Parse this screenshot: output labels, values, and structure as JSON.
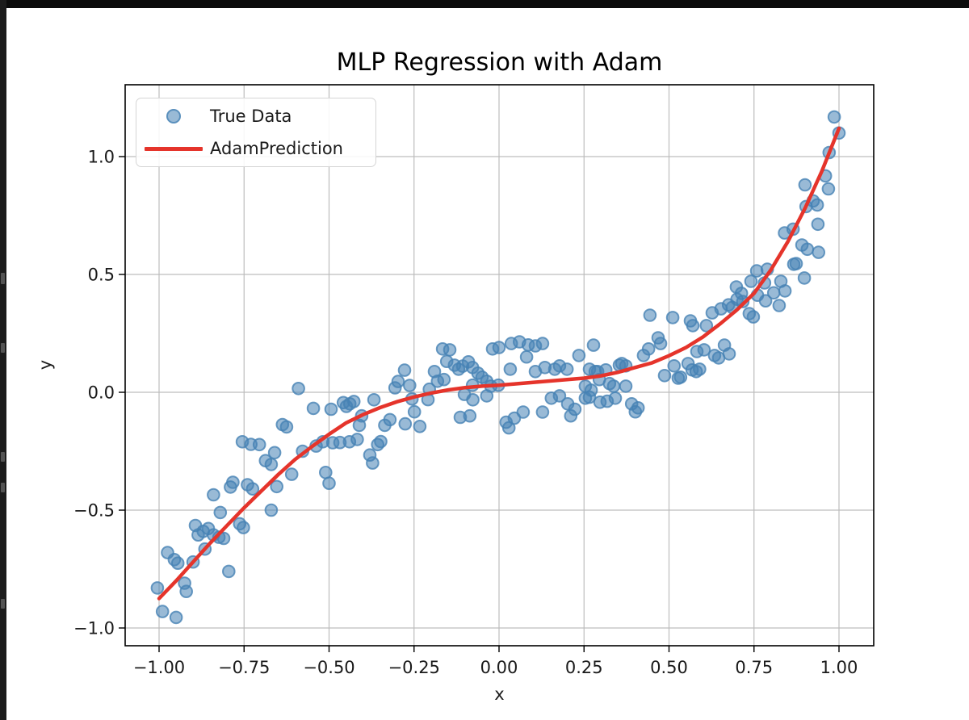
{
  "page": {
    "background": "#ffffff",
    "top_bar_color": "#0b0b0b",
    "left_strip_color": "#1c1c1c"
  },
  "chart_data": {
    "type": "scatter",
    "title": "MLP Regression with Adam",
    "xlabel": "x",
    "ylabel": "y",
    "xlim": [
      -1.1,
      1.1
    ],
    "ylim": [
      -1.075,
      1.305
    ],
    "grid": true,
    "grid_color": "#bdbdbd",
    "x_ticks": [
      -1.0,
      -0.75,
      -0.5,
      -0.25,
      0.0,
      0.25,
      0.5,
      0.75,
      1.0
    ],
    "x_tick_labels": [
      "−1.00",
      "−0.75",
      "−0.50",
      "−0.25",
      "0.00",
      "0.25",
      "0.50",
      "0.75",
      "1.00"
    ],
    "y_ticks": [
      1.0,
      0.5,
      0.0,
      -0.5,
      -1.0
    ],
    "y_tick_labels": [
      "1.0",
      "0.5",
      "0.0",
      "−0.5",
      "−1.0"
    ],
    "legend": {
      "position": "upper left",
      "entries": [
        {
          "label": "True Data",
          "type": "marker",
          "color": "#4682b4"
        },
        {
          "label": "AdamPrediction",
          "type": "line",
          "color": "#e5342b"
        }
      ]
    },
    "series": [
      {
        "name": "True Data",
        "type": "scatter",
        "marker_color": "#4682b4",
        "marker_alpha": 0.55,
        "points": [
          [
            -1.005,
            -0.83
          ],
          [
            -0.99,
            -0.93
          ],
          [
            -0.95,
            -0.955
          ],
          [
            -0.975,
            -0.68
          ],
          [
            -0.955,
            -0.71
          ],
          [
            -0.945,
            -0.725
          ],
          [
            -0.925,
            -0.81
          ],
          [
            -0.92,
            -0.845
          ],
          [
            -0.9,
            -0.72
          ],
          [
            -0.893,
            -0.565
          ],
          [
            -0.885,
            -0.605
          ],
          [
            -0.87,
            -0.59
          ],
          [
            -0.855,
            -0.578
          ],
          [
            -0.865,
            -0.665
          ],
          [
            -0.84,
            -0.605
          ],
          [
            -0.824,
            -0.615
          ],
          [
            -0.81,
            -0.62
          ],
          [
            -0.84,
            -0.435
          ],
          [
            -0.82,
            -0.51
          ],
          [
            -0.795,
            -0.76
          ],
          [
            -0.79,
            -0.402
          ],
          [
            -0.783,
            -0.382
          ],
          [
            -0.763,
            -0.558
          ],
          [
            -0.752,
            -0.574
          ],
          [
            -0.74,
            -0.392
          ],
          [
            -0.725,
            -0.41
          ],
          [
            -0.755,
            -0.21
          ],
          [
            -0.73,
            -0.221
          ],
          [
            -0.705,
            -0.222
          ],
          [
            -0.687,
            -0.29
          ],
          [
            -0.67,
            -0.306
          ],
          [
            -0.66,
            -0.256
          ],
          [
            -0.654,
            -0.4
          ],
          [
            -0.67,
            -0.5
          ],
          [
            -0.637,
            -0.137
          ],
          [
            -0.625,
            -0.147
          ],
          [
            -0.61,
            -0.348
          ],
          [
            -0.59,
            0.016
          ],
          [
            -0.578,
            -0.25
          ],
          [
            -0.546,
            -0.068
          ],
          [
            -0.538,
            -0.228
          ],
          [
            -0.518,
            -0.21
          ],
          [
            -0.51,
            -0.34
          ],
          [
            -0.5,
            -0.386
          ],
          [
            -0.494,
            -0.072
          ],
          [
            -0.489,
            -0.214
          ],
          [
            -0.468,
            -0.213
          ],
          [
            -0.458,
            -0.044
          ],
          [
            -0.449,
            -0.06
          ],
          [
            -0.439,
            -0.049
          ],
          [
            -0.427,
            -0.039
          ],
          [
            -0.44,
            -0.21
          ],
          [
            -0.417,
            -0.2
          ],
          [
            -0.411,
            -0.14
          ],
          [
            -0.404,
            -0.1
          ],
          [
            -0.38,
            -0.266
          ],
          [
            -0.372,
            -0.3
          ],
          [
            -0.368,
            -0.032
          ],
          [
            -0.357,
            -0.222
          ],
          [
            -0.348,
            -0.209
          ],
          [
            -0.336,
            -0.14
          ],
          [
            -0.321,
            -0.116
          ],
          [
            -0.306,
            0.019
          ],
          [
            -0.297,
            0.046
          ],
          [
            -0.278,
            0.094
          ],
          [
            -0.276,
            -0.134
          ],
          [
            -0.263,
            0.029
          ],
          [
            -0.256,
            -0.028
          ],
          [
            -0.249,
            -0.083
          ],
          [
            -0.233,
            -0.145
          ],
          [
            -0.209,
            -0.031
          ],
          [
            -0.205,
            0.013
          ],
          [
            -0.19,
            0.088
          ],
          [
            -0.181,
            0.047
          ],
          [
            -0.166,
            0.184
          ],
          [
            -0.162,
            0.054
          ],
          [
            -0.154,
            0.131
          ],
          [
            -0.145,
            0.18
          ],
          [
            -0.131,
            0.115
          ],
          [
            -0.119,
            0.098
          ],
          [
            -0.114,
            -0.106
          ],
          [
            -0.107,
            0.111
          ],
          [
            -0.102,
            -0.009
          ],
          [
            -0.09,
            0.129
          ],
          [
            -0.086,
            -0.1
          ],
          [
            -0.078,
            0.105
          ],
          [
            -0.078,
            0.03
          ],
          [
            -0.077,
            -0.032
          ],
          [
            -0.062,
            0.081
          ],
          [
            -0.05,
            0.064
          ],
          [
            -0.036,
            0.047
          ],
          [
            -0.036,
            -0.015
          ],
          [
            -0.024,
            0.026
          ],
          [
            -0.019,
            0.184
          ],
          [
            -0.002,
            0.03
          ],
          [
            0.0,
            0.19
          ],
          [
            0.021,
            -0.127
          ],
          [
            0.029,
            -0.151
          ],
          [
            0.033,
            0.098
          ],
          [
            0.036,
            0.207
          ],
          [
            0.045,
            -0.11
          ],
          [
            0.06,
            0.214
          ],
          [
            0.071,
            -0.084
          ],
          [
            0.081,
            0.15
          ],
          [
            0.086,
            0.201
          ],
          [
            0.107,
            0.197
          ],
          [
            0.107,
            0.088
          ],
          [
            0.128,
            0.207
          ],
          [
            0.128,
            -0.084
          ],
          [
            0.135,
            0.105
          ],
          [
            0.154,
            -0.025
          ],
          [
            0.164,
            0.098
          ],
          [
            0.178,
            0.112
          ],
          [
            0.178,
            -0.015
          ],
          [
            0.2,
            0.098
          ],
          [
            0.202,
            -0.049
          ],
          [
            0.211,
            -0.1
          ],
          [
            0.223,
            -0.072
          ],
          [
            0.235,
            0.156
          ],
          [
            0.254,
            0.026
          ],
          [
            0.254,
            -0.025
          ],
          [
            0.266,
            0.098
          ],
          [
            0.266,
            -0.021
          ],
          [
            0.271,
            0.009
          ],
          [
            0.278,
            0.2
          ],
          [
            0.283,
            0.088
          ],
          [
            0.29,
            0.088
          ],
          [
            0.295,
            0.054
          ],
          [
            0.297,
            -0.042
          ],
          [
            0.314,
            0.095
          ],
          [
            0.318,
            -0.038
          ],
          [
            0.325,
            0.037
          ],
          [
            0.337,
            0.026
          ],
          [
            0.342,
            -0.025
          ],
          [
            0.354,
            0.115
          ],
          [
            0.361,
            0.122
          ],
          [
            0.373,
            0.112
          ],
          [
            0.373,
            0.026
          ],
          [
            0.39,
            -0.049
          ],
          [
            0.401,
            -0.083
          ],
          [
            0.409,
            -0.066
          ],
          [
            0.425,
            0.156
          ],
          [
            0.44,
            0.184
          ],
          [
            0.444,
            0.327
          ],
          [
            0.468,
            0.231
          ],
          [
            0.475,
            0.207
          ],
          [
            0.487,
            0.071
          ],
          [
            0.511,
            0.317
          ],
          [
            0.515,
            0.112
          ],
          [
            0.527,
            0.06
          ],
          [
            0.534,
            0.064
          ],
          [
            0.556,
            0.122
          ],
          [
            0.563,
            0.303
          ],
          [
            0.568,
            0.095
          ],
          [
            0.57,
            0.283
          ],
          [
            0.58,
            0.088
          ],
          [
            0.582,
            0.173
          ],
          [
            0.59,
            0.098
          ],
          [
            0.603,
            0.18
          ],
          [
            0.61,
            0.283
          ],
          [
            0.627,
            0.337
          ],
          [
            0.634,
            0.156
          ],
          [
            0.646,
            0.146
          ],
          [
            0.653,
            0.354
          ],
          [
            0.663,
            0.2
          ],
          [
            0.675,
            0.371
          ],
          [
            0.677,
            0.163
          ],
          [
            0.686,
            0.36
          ],
          [
            0.7,
            0.395
          ],
          [
            0.717,
            0.385
          ],
          [
            0.736,
            0.334
          ],
          [
            0.748,
            0.32
          ],
          [
            0.698,
            0.447
          ],
          [
            0.713,
            0.42
          ],
          [
            0.741,
            0.471
          ],
          [
            0.758,
            0.515
          ],
          [
            0.76,
            0.412
          ],
          [
            0.781,
            0.464
          ],
          [
            0.784,
            0.388
          ],
          [
            0.789,
            0.522
          ],
          [
            0.808,
            0.422
          ],
          [
            0.824,
            0.368
          ],
          [
            0.829,
            0.471
          ],
          [
            0.841,
            0.43
          ],
          [
            0.84,
            0.676
          ],
          [
            0.865,
            0.692
          ],
          [
            0.867,
            0.543
          ],
          [
            0.874,
            0.546
          ],
          [
            0.891,
            0.625
          ],
          [
            0.898,
            0.485
          ],
          [
            0.903,
            0.788
          ],
          [
            0.9,
            0.88
          ],
          [
            0.907,
            0.607
          ],
          [
            0.924,
            0.812
          ],
          [
            0.936,
            0.795
          ],
          [
            0.938,
            0.713
          ],
          [
            0.94,
            0.594
          ],
          [
            0.96,
            0.918
          ],
          [
            0.969,
            0.863
          ],
          [
            0.971,
            1.017
          ],
          [
            0.986,
            1.168
          ],
          [
            1.0,
            1.1
          ]
        ]
      },
      {
        "name": "AdamPrediction",
        "type": "line",
        "line_color": "#e5342b",
        "line_width": 4.5,
        "points": [
          [
            -1.0,
            -0.875
          ],
          [
            -0.95,
            -0.8
          ],
          [
            -0.9,
            -0.72
          ],
          [
            -0.85,
            -0.64
          ],
          [
            -0.8,
            -0.565
          ],
          [
            -0.75,
            -0.49
          ],
          [
            -0.7,
            -0.42
          ],
          [
            -0.65,
            -0.35
          ],
          [
            -0.6,
            -0.285
          ],
          [
            -0.55,
            -0.23
          ],
          [
            -0.5,
            -0.178
          ],
          [
            -0.45,
            -0.13
          ],
          [
            -0.4,
            -0.095
          ],
          [
            -0.35,
            -0.065
          ],
          [
            -0.3,
            -0.04
          ],
          [
            -0.25,
            -0.02
          ],
          [
            -0.2,
            -0.003
          ],
          [
            -0.15,
            0.01
          ],
          [
            -0.1,
            0.02
          ],
          [
            -0.05,
            0.026
          ],
          [
            0.0,
            0.03
          ],
          [
            0.05,
            0.036
          ],
          [
            0.1,
            0.042
          ],
          [
            0.15,
            0.048
          ],
          [
            0.2,
            0.054
          ],
          [
            0.25,
            0.06
          ],
          [
            0.3,
            0.07
          ],
          [
            0.35,
            0.085
          ],
          [
            0.4,
            0.105
          ],
          [
            0.45,
            0.125
          ],
          [
            0.5,
            0.155
          ],
          [
            0.55,
            0.19
          ],
          [
            0.6,
            0.235
          ],
          [
            0.65,
            0.29
          ],
          [
            0.7,
            0.35
          ],
          [
            0.75,
            0.42
          ],
          [
            0.8,
            0.52
          ],
          [
            0.85,
            0.64
          ],
          [
            0.9,
            0.78
          ],
          [
            0.95,
            0.94
          ],
          [
            1.0,
            1.12
          ]
        ]
      }
    ]
  }
}
